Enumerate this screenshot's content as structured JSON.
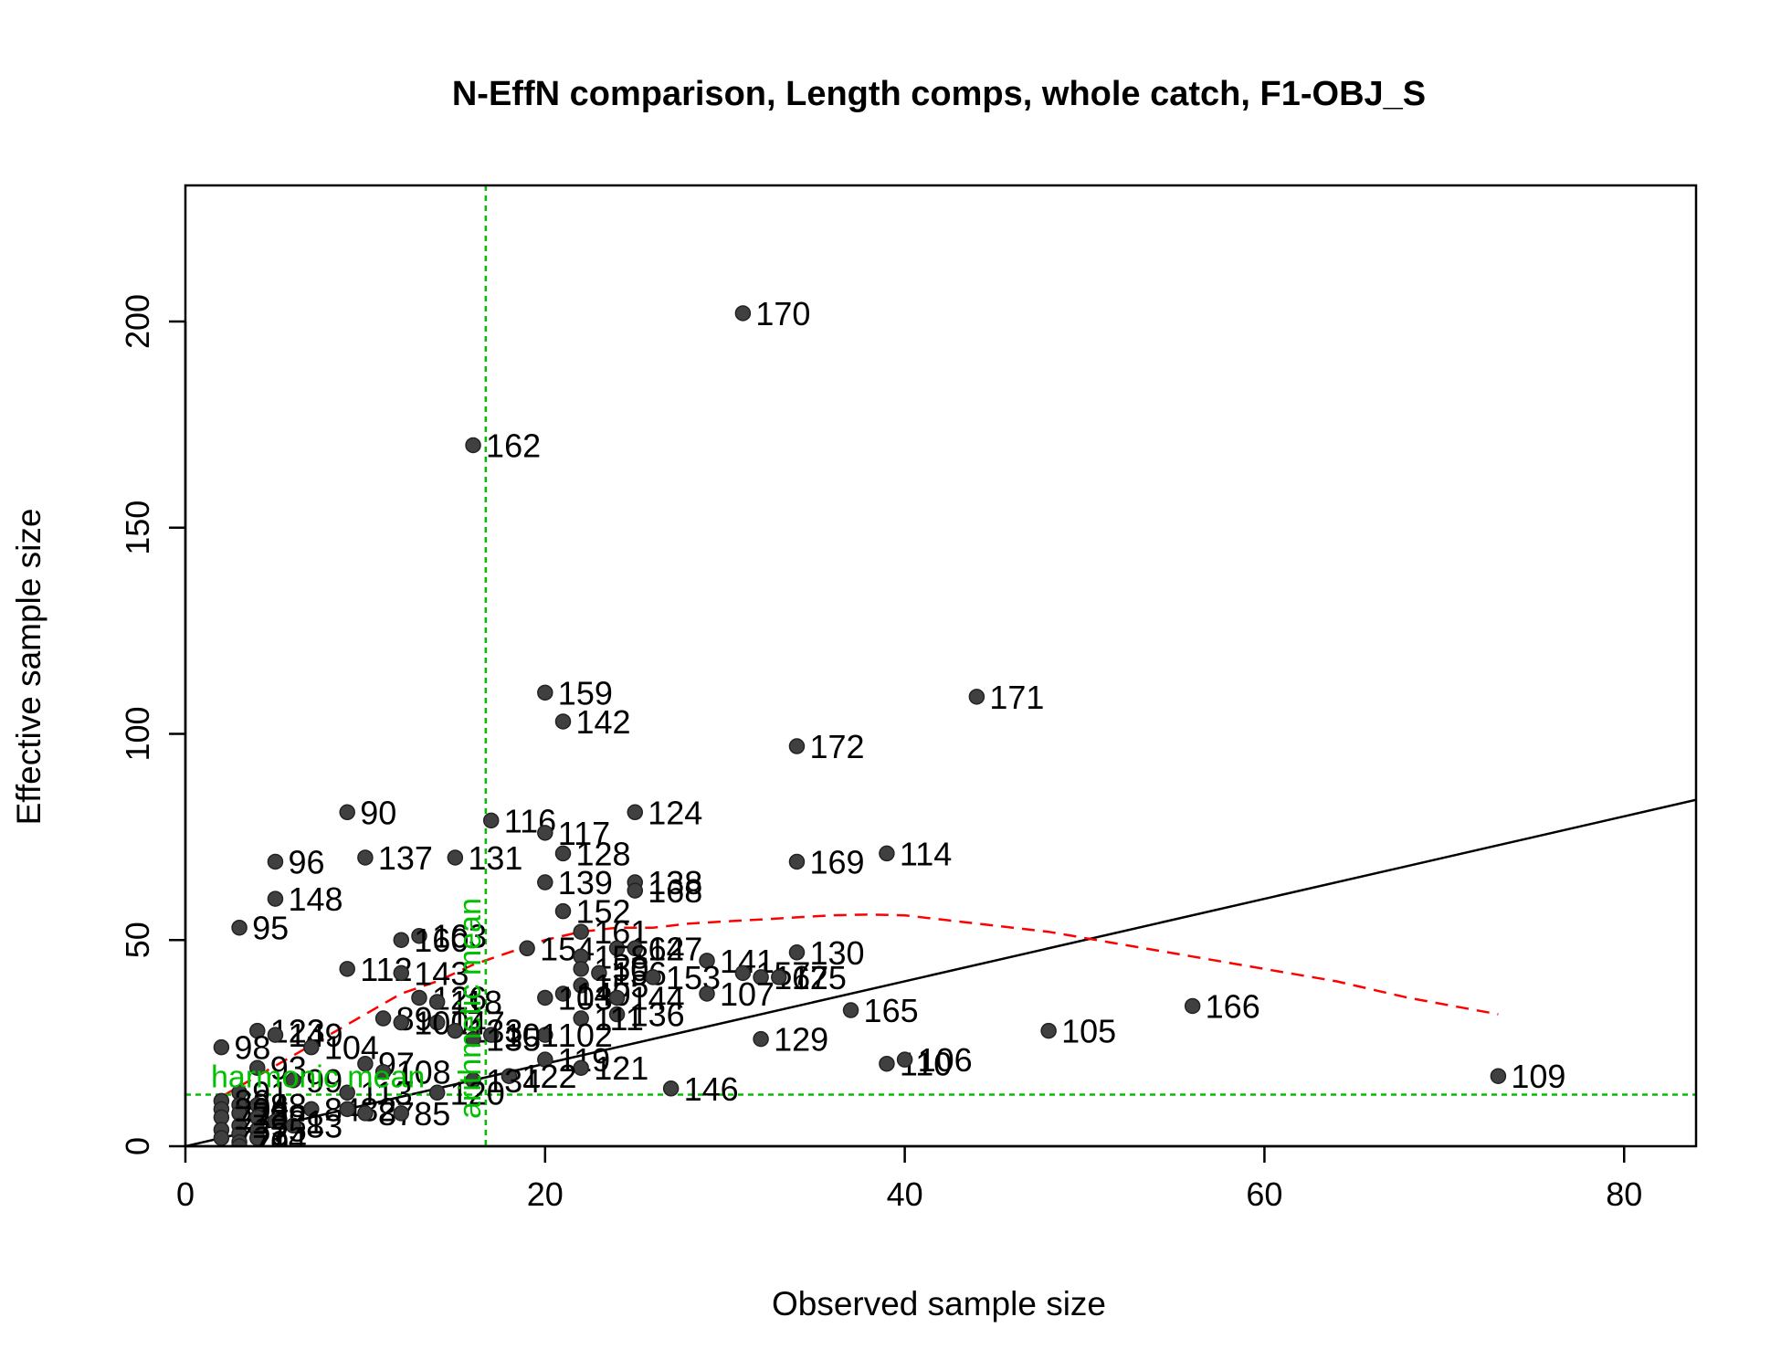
{
  "chart_data": {
    "type": "scatter",
    "title": "N-EffN comparison, Length comps, whole catch, F1-OBJ_S",
    "xlabel": "Observed sample size",
    "ylabel": "Effective sample size",
    "xlim": [
      0,
      84
    ],
    "ylim": [
      0,
      233
    ],
    "xticks": [
      0,
      20,
      40,
      60,
      80
    ],
    "yticks": [
      0,
      50,
      100,
      150,
      200
    ],
    "grid": false,
    "points": [
      {
        "label": "170",
        "x": 31,
        "y": 202
      },
      {
        "label": "162",
        "x": 16,
        "y": 170
      },
      {
        "label": "159",
        "x": 20,
        "y": 110
      },
      {
        "label": "171",
        "x": 44,
        "y": 109
      },
      {
        "label": "142",
        "x": 21,
        "y": 103
      },
      {
        "label": "172",
        "x": 34,
        "y": 97
      },
      {
        "label": "90",
        "x": 9,
        "y": 81
      },
      {
        "label": "124",
        "x": 25,
        "y": 81
      },
      {
        "label": "116",
        "x": 17,
        "y": 79
      },
      {
        "label": "117",
        "x": 20,
        "y": 76
      },
      {
        "label": "114",
        "x": 39,
        "y": 71
      },
      {
        "label": "128",
        "x": 21,
        "y": 71
      },
      {
        "label": "137",
        "x": 10,
        "y": 70
      },
      {
        "label": "131",
        "x": 15,
        "y": 70
      },
      {
        "label": "96",
        "x": 5,
        "y": 69
      },
      {
        "label": "169",
        "x": 34,
        "y": 69
      },
      {
        "label": "139",
        "x": 20,
        "y": 64
      },
      {
        "label": "138",
        "x": 25,
        "y": 64
      },
      {
        "label": "168",
        "x": 25,
        "y": 62
      },
      {
        "label": "148",
        "x": 5,
        "y": 60
      },
      {
        "label": "152",
        "x": 21,
        "y": 57
      },
      {
        "label": "95",
        "x": 3,
        "y": 53
      },
      {
        "label": "161",
        "x": 22,
        "y": 52
      },
      {
        "label": "163",
        "x": 13,
        "y": 51
      },
      {
        "label": "160",
        "x": 12,
        "y": 50
      },
      {
        "label": "154",
        "x": 19,
        "y": 48
      },
      {
        "label": "164",
        "x": 24,
        "y": 48
      },
      {
        "label": "127",
        "x": 25,
        "y": 48
      },
      {
        "label": "130",
        "x": 34,
        "y": 47
      },
      {
        "label": "158",
        "x": 22,
        "y": 46
      },
      {
        "label": "141",
        "x": 29,
        "y": 45
      },
      {
        "label": "112",
        "x": 9,
        "y": 43
      },
      {
        "label": "150",
        "x": 22,
        "y": 43
      },
      {
        "label": "143",
        "x": 12,
        "y": 42
      },
      {
        "label": "156",
        "x": 23,
        "y": 42
      },
      {
        "label": "153",
        "x": 26,
        "y": 41
      },
      {
        "label": "157",
        "x": 31,
        "y": 42
      },
      {
        "label": "167",
        "x": 32,
        "y": 41
      },
      {
        "label": "125",
        "x": 33,
        "y": 41
      },
      {
        "label": "155",
        "x": 22,
        "y": 39
      },
      {
        "label": "107",
        "x": 29,
        "y": 37
      },
      {
        "label": "140",
        "x": 21,
        "y": 37
      },
      {
        "label": "103",
        "x": 20,
        "y": 36
      },
      {
        "label": "126",
        "x": 13,
        "y": 36
      },
      {
        "label": "144",
        "x": 24,
        "y": 36
      },
      {
        "label": "118",
        "x": 14,
        "y": 35
      },
      {
        "label": "165",
        "x": 37,
        "y": 33
      },
      {
        "label": "166",
        "x": 56,
        "y": 34
      },
      {
        "label": "136",
        "x": 24,
        "y": 32
      },
      {
        "label": "111",
        "x": 22,
        "y": 31
      },
      {
        "label": "89",
        "x": 11,
        "y": 31
      },
      {
        "label": "147",
        "x": 14,
        "y": 30
      },
      {
        "label": "100",
        "x": 12,
        "y": 30
      },
      {
        "label": "105",
        "x": 48,
        "y": 28
      },
      {
        "label": "123",
        "x": 4,
        "y": 28
      },
      {
        "label": "133",
        "x": 15,
        "y": 28
      },
      {
        "label": "102",
        "x": 20,
        "y": 27
      },
      {
        "label": "101",
        "x": 17,
        "y": 27
      },
      {
        "label": "149",
        "x": 5,
        "y": 27
      },
      {
        "label": "129",
        "x": 32,
        "y": 26
      },
      {
        "label": "135",
        "x": 16,
        "y": 26
      },
      {
        "label": "104",
        "x": 7,
        "y": 24
      },
      {
        "label": "98",
        "x": 2,
        "y": 24
      },
      {
        "label": "110",
        "x": 39,
        "y": 20
      },
      {
        "label": "106",
        "x": 40,
        "y": 21
      },
      {
        "label": "119",
        "x": 20,
        "y": 21
      },
      {
        "label": "97",
        "x": 10,
        "y": 20
      },
      {
        "label": "93",
        "x": 4,
        "y": 19
      },
      {
        "label": "121",
        "x": 22,
        "y": 19
      },
      {
        "label": "122",
        "x": 18,
        "y": 17
      },
      {
        "label": "108",
        "x": 11,
        "y": 18
      },
      {
        "label": "109",
        "x": 73,
        "y": 17
      },
      {
        "label": "99",
        "x": 6,
        "y": 16
      },
      {
        "label": "134",
        "x": 16,
        "y": 16
      },
      {
        "label": "146",
        "x": 27,
        "y": 14
      },
      {
        "label": "113",
        "x": 9,
        "y": 13
      },
      {
        "label": "91",
        "x": 3,
        "y": 13
      },
      {
        "label": "120",
        "x": 14,
        "y": 13
      },
      {
        "label": "86",
        "x": 2,
        "y": 11
      },
      {
        "label": "94",
        "x": 3,
        "y": 10
      },
      {
        "label": "88",
        "x": 4,
        "y": 10
      },
      {
        "label": "80",
        "x": 2,
        "y": 9
      },
      {
        "label": "84",
        "x": 7,
        "y": 9
      },
      {
        "label": "82",
        "x": 9,
        "y": 9
      },
      {
        "label": "78",
        "x": 3,
        "y": 8
      },
      {
        "label": "87",
        "x": 10,
        "y": 8
      },
      {
        "label": "85",
        "x": 12,
        "y": 8
      },
      {
        "label": "92",
        "x": 4,
        "y": 7
      },
      {
        "label": "77",
        "x": 2,
        "y": 7
      },
      {
        "label": "81",
        "x": 5,
        "y": 6
      },
      {
        "label": "79",
        "x": 3,
        "y": 5
      },
      {
        "label": "83",
        "x": 6,
        "y": 5
      },
      {
        "label": "76",
        "x": 2,
        "y": 4
      },
      {
        "label": "75",
        "x": 4,
        "y": 4
      },
      {
        "label": "73",
        "x": 3,
        "y": 3
      },
      {
        "label": "72",
        "x": 2,
        "y": 2
      },
      {
        "label": "74",
        "x": 4,
        "y": 2
      },
      {
        "label": "70",
        "x": 3,
        "y": 1
      },
      {
        "label": "71",
        "x": 3,
        "y": 0
      }
    ],
    "reference_line": {
      "slope": 1,
      "intercept": 0
    },
    "smoother": {
      "x": [
        2,
        4,
        6,
        8,
        10,
        12,
        14,
        16,
        18,
        20,
        22,
        24,
        26,
        28,
        30,
        32,
        34,
        36,
        38,
        40,
        44,
        48,
        52,
        56,
        60,
        64,
        68,
        73
      ],
      "y": [
        12,
        17,
        22,
        27,
        32,
        37,
        40,
        44,
        47,
        50,
        52,
        53,
        53,
        54,
        54.5,
        55,
        55.5,
        56,
        56.2,
        56,
        54,
        52,
        49,
        46,
        43,
        40,
        36,
        32
      ]
    },
    "harmonic_mean": {
      "label": "harmonic mean",
      "value": 12.5
    },
    "arithmetic_mean": {
      "label": "arithmetic mean",
      "value": 16.7
    },
    "colors": {
      "points": "#404040",
      "reference_line": "#000000",
      "smoother": "#ff0000",
      "means": "#00c000"
    }
  }
}
